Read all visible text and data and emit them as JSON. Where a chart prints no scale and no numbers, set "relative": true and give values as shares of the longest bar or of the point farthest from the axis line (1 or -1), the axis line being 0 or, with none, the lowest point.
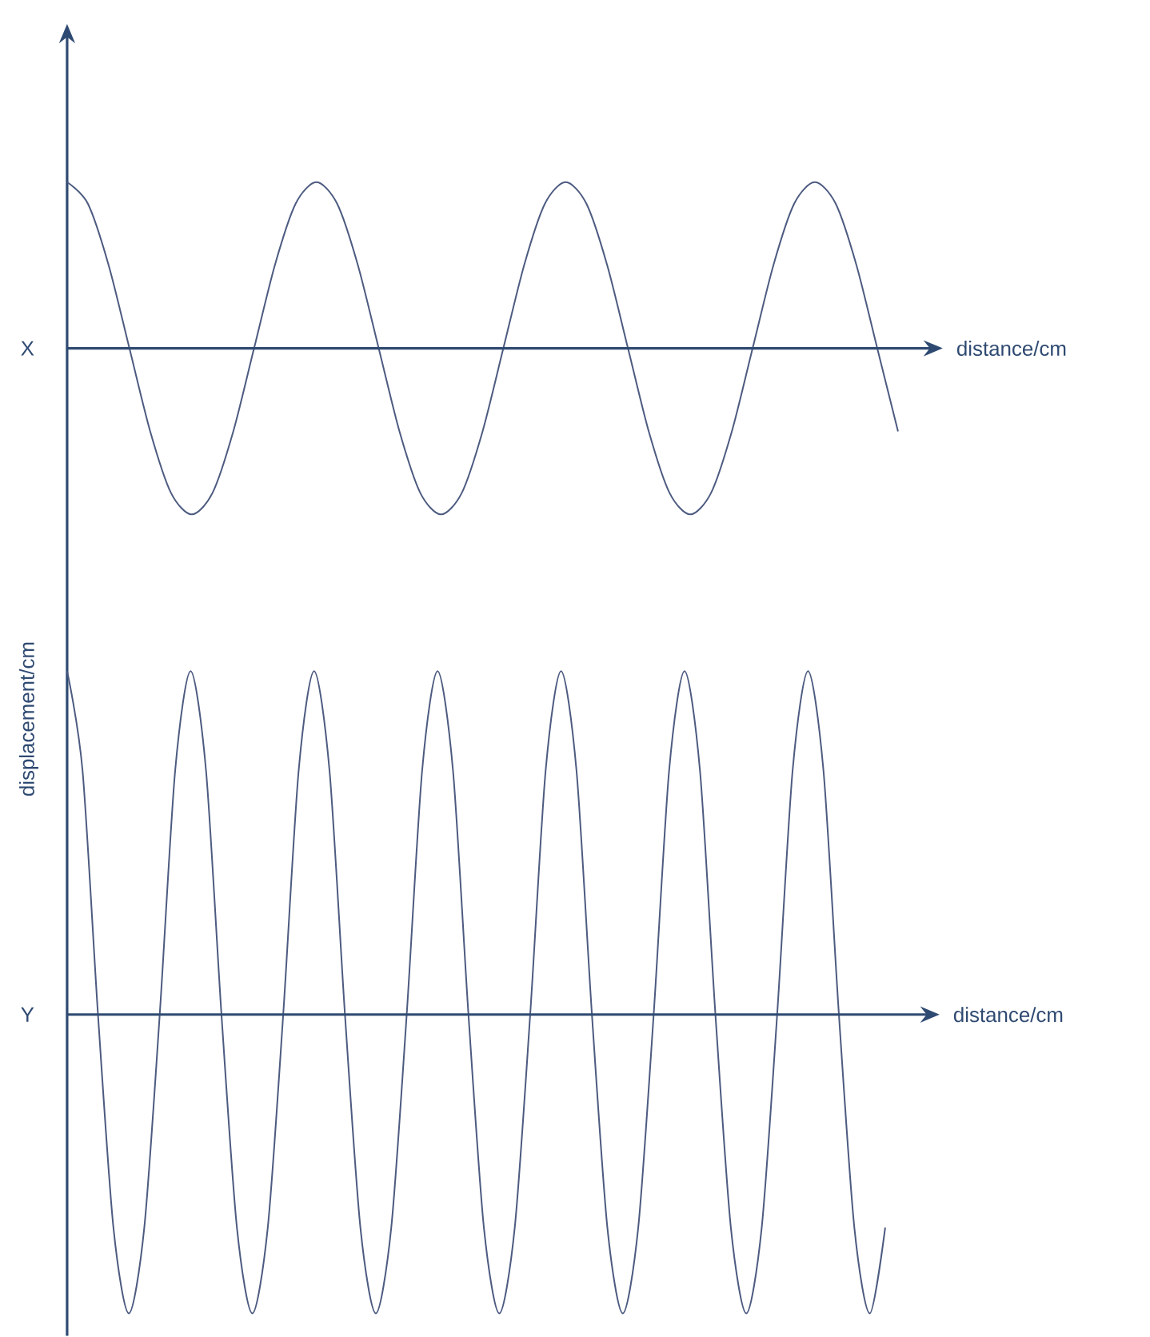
{
  "chart_data": [
    {
      "type": "line",
      "title": "X",
      "xlabel": "distance/cm",
      "relative": true,
      "color": "#4d5b80",
      "ref_lines": [
        {
          "axis": "y",
          "value": 0,
          "color": "#2f4a72"
        }
      ],
      "categories": [
        null,
        null,
        null,
        null,
        null,
        null,
        null,
        null,
        null,
        null,
        null,
        null,
        null,
        null,
        null,
        null,
        null,
        null,
        null,
        null,
        null,
        null,
        null,
        null,
        null,
        null,
        null,
        null,
        null,
        null,
        null,
        null,
        null,
        null,
        null,
        null,
        null,
        null,
        null,
        null,
        null
      ],
      "values": [
        1,
        0.87,
        0.5,
        0,
        -0.5,
        -0.87,
        -1,
        -0.87,
        -0.5,
        0,
        0.5,
        0.87,
        1,
        0.87,
        0.5,
        0,
        -0.5,
        -0.87,
        -1,
        -0.87,
        -0.5,
        0,
        0.5,
        0.87,
        1,
        0.87,
        0.5,
        0,
        -0.5,
        -0.87,
        -1,
        -0.87,
        -0.5,
        0,
        0.5,
        0.87,
        1,
        0.87,
        0.5,
        0,
        -0.5
      ]
    },
    {
      "type": "line",
      "title": "Y",
      "xlabel": "distance/cm",
      "ylabel": "displacement/cm",
      "relative": true,
      "color": "#4d5b80",
      "ref_lines": [
        {
          "axis": "y",
          "value": 0,
          "color": "#2f4a72"
        }
      ],
      "categories": [
        null,
        null,
        null,
        null,
        null,
        null,
        null,
        null,
        null,
        null,
        null,
        null,
        null,
        null,
        null,
        null,
        null,
        null,
        null,
        null,
        null,
        null,
        null,
        null,
        null,
        null,
        null,
        null,
        null,
        null,
        null,
        null,
        null,
        null,
        null,
        null,
        null,
        null,
        null,
        null,
        null,
        null,
        null,
        null,
        null,
        null,
        null,
        null,
        null,
        null,
        null,
        null,
        null,
        null
      ],
      "values": [
        1,
        0.71,
        0,
        -0.62,
        -0.87,
        -0.62,
        0,
        0.71,
        1,
        0.71,
        0,
        -0.62,
        -0.87,
        -0.62,
        0,
        0.71,
        1,
        0.71,
        0,
        -0.62,
        -0.87,
        -0.62,
        0,
        0.71,
        1,
        0.71,
        0,
        -0.62,
        -0.87,
        -0.62,
        0,
        0.71,
        1,
        0.71,
        0,
        -0.62,
        -0.87,
        -0.62,
        0,
        0.71,
        1,
        0.71,
        0,
        -0.62,
        -0.87,
        -0.62,
        0,
        0.71,
        1,
        0.71,
        0,
        -0.62,
        -0.87,
        -0.62
      ]
    }
  ]
}
